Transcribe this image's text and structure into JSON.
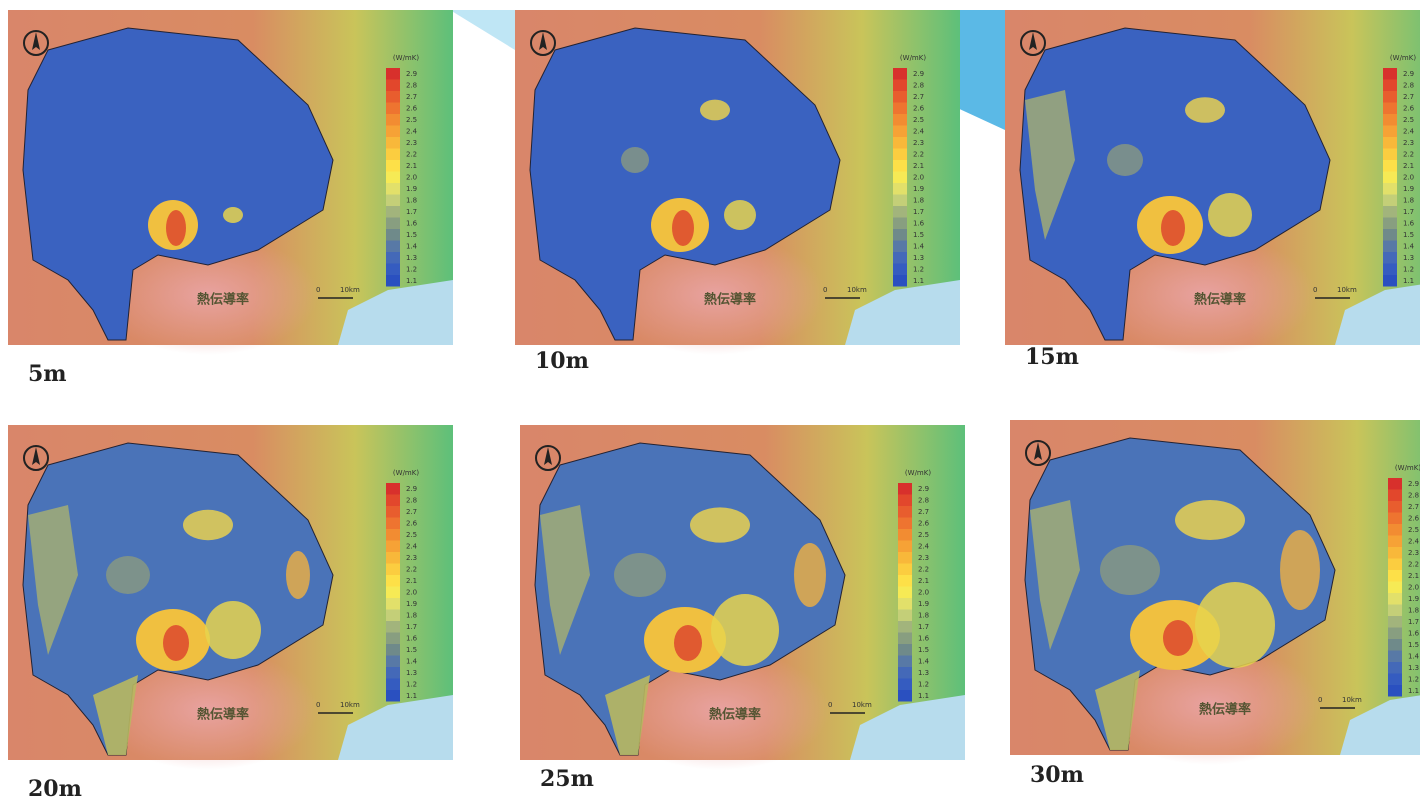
{
  "panels": [
    {
      "depth": "5m",
      "map_title": "熱伝導率",
      "unit": "(W/mK)",
      "legend": [
        "2.9",
        "2.8",
        "2.7",
        "2.6",
        "2.5",
        "2.4",
        "2.3",
        "2.2",
        "2.1",
        "2.0",
        "1.9",
        "1.8",
        "1.7",
        "1.6",
        "1.5",
        "1.4",
        "1.3",
        "1.2",
        "1.1"
      ],
      "scale": [
        "0",
        "10km"
      ]
    },
    {
      "depth": "10m",
      "map_title": "熱伝導率",
      "unit": "(W/mK)",
      "legend": [
        "2.9",
        "2.8",
        "2.7",
        "2.6",
        "2.5",
        "2.4",
        "2.3",
        "2.2",
        "2.1",
        "2.0",
        "1.9",
        "1.8",
        "1.7",
        "1.6",
        "1.5",
        "1.4",
        "1.3",
        "1.2",
        "1.1"
      ],
      "scale": [
        "0",
        "10km"
      ]
    },
    {
      "depth": "15m",
      "map_title": "熱伝導率",
      "unit": "(W/mK)",
      "legend": [
        "2.9",
        "2.8",
        "2.7",
        "2.6",
        "2.5",
        "2.4",
        "2.3",
        "2.2",
        "2.1",
        "2.0",
        "1.9",
        "1.8",
        "1.7",
        "1.6",
        "1.5",
        "1.4",
        "1.3",
        "1.2",
        "1.1"
      ],
      "scale": [
        "0",
        "10km"
      ]
    },
    {
      "depth": "20m",
      "map_title": "熱伝導率",
      "unit": "(W/mK)",
      "legend": [
        "2.9",
        "2.8",
        "2.7",
        "2.6",
        "2.5",
        "2.4",
        "2.3",
        "2.2",
        "2.1",
        "2.0",
        "1.9",
        "1.8",
        "1.7",
        "1.6",
        "1.5",
        "1.4",
        "1.3",
        "1.2",
        "1.1"
      ],
      "scale": [
        "0",
        "10km"
      ]
    },
    {
      "depth": "25m",
      "map_title": "熱伝導率",
      "unit": "(W/mK)",
      "legend": [
        "2.9",
        "2.8",
        "2.7",
        "2.6",
        "2.5",
        "2.4",
        "2.3",
        "2.2",
        "2.1",
        "2.0",
        "1.9",
        "1.8",
        "1.7",
        "1.6",
        "1.5",
        "1.4",
        "1.3",
        "1.2",
        "1.1"
      ],
      "scale": [
        "0",
        "10km"
      ]
    },
    {
      "depth": "30m",
      "map_title": "熱伝導率",
      "unit": "(W/mK)",
      "legend": [
        "2.9",
        "2.8",
        "2.7",
        "2.6",
        "2.5",
        "2.4",
        "2.3",
        "2.2",
        "2.1",
        "2.0",
        "1.9",
        "1.8",
        "1.7",
        "1.6",
        "1.5",
        "1.4",
        "1.3",
        "1.2",
        "1.1"
      ],
      "scale": [
        "0",
        "10km"
      ]
    }
  ]
}
